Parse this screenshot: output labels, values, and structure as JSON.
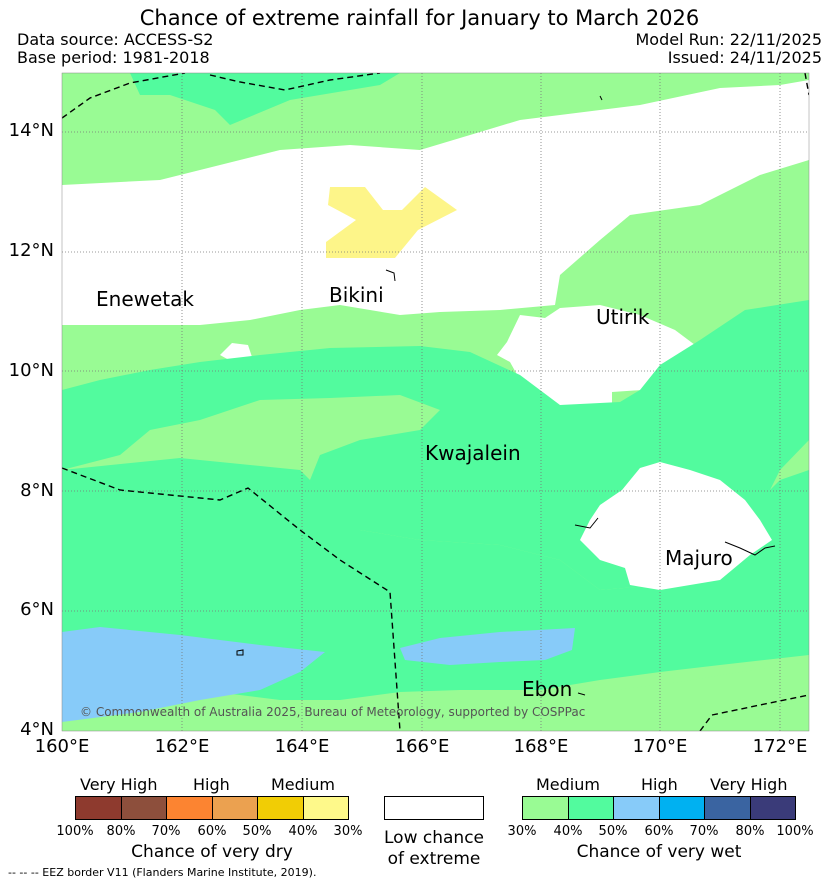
{
  "title": "Chance of extreme rainfall for January to March 2026",
  "data_source": "Data source: ACCESS-S2",
  "base_period": "Base period: 1981-2018",
  "model_run": "Model Run: 22/11/2025",
  "issued": "Issued: 24/11/2025",
  "map": {
    "lon_ticks": [
      "160°E",
      "162°E",
      "164°E",
      "166°E",
      "168°E",
      "170°E",
      "172°E"
    ],
    "lat_ticks": [
      "4°N",
      "6°N",
      "8°N",
      "10°N",
      "12°N",
      "14°N"
    ],
    "places": [
      "Enewetak",
      "Bikini",
      "Utirik",
      "Kwajalein",
      "Majuro",
      "Ebon"
    ],
    "copyright": "© Commonwealth of Australia 2025, Bureau of Meteorology, supported by COSPPac",
    "colors": {
      "wet_30_40": "#99fb94",
      "wet_40_50": "#52fb9e",
      "wet_50_60": "#87cbf9",
      "low_chance": "#ffffff",
      "dry_30_40": "#fdf589"
    }
  },
  "legend": {
    "dry": {
      "categories": [
        "Very High",
        "High",
        "Medium"
      ],
      "percents": [
        "100%",
        "80%",
        "70%",
        "60%",
        "50%",
        "40%",
        "30%"
      ],
      "colors": [
        "#8e3a2e",
        "#8d4f3c",
        "#fc8431",
        "#eba150",
        "#f1cd05",
        "#fef98a"
      ],
      "caption": "Chance of very dry"
    },
    "low": {
      "caption_1": "Low chance",
      "caption_2": "of extreme"
    },
    "wet": {
      "categories": [
        "Medium",
        "High",
        "Very High"
      ],
      "percents": [
        "30%",
        "40%",
        "50%",
        "60%",
        "70%",
        "80%",
        "100%"
      ],
      "colors": [
        "#99fb94",
        "#52fb9e",
        "#87cbf9",
        "#00b1f1",
        "#3a64a1",
        "#3a3b79"
      ],
      "caption": "Chance of very wet"
    }
  },
  "footnote": "--  --  -- EEZ border V11 (Flanders Marine Institute, 2019)."
}
